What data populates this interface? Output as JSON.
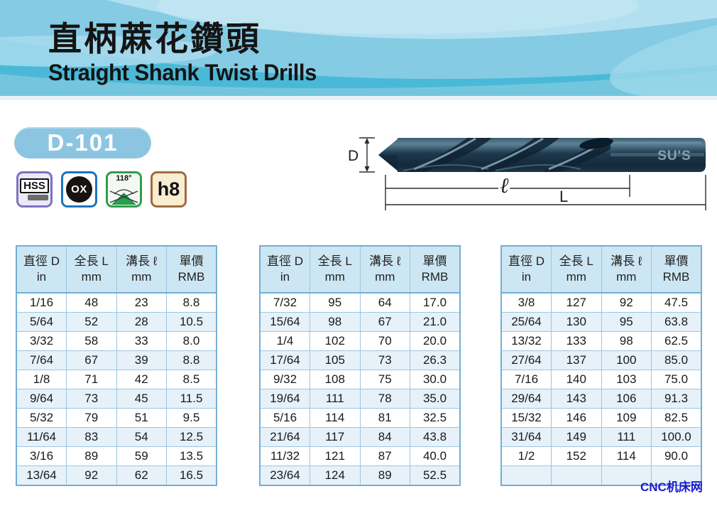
{
  "page": {
    "title_zh": "直柄蔴花鑽頭",
    "title_en": "Straight Shank Twist Drills",
    "model": "D-101",
    "watermark": "CNC机床网"
  },
  "spec_icons": {
    "hss": "HSS",
    "ox": "OX",
    "angle": "118°",
    "tolerance": "h8"
  },
  "diagram": {
    "brand": "SU'S",
    "label_diameter": "D",
    "label_flute_length": "ℓ",
    "label_overall_length": "L"
  },
  "table_header": {
    "c1a": "直徑 D",
    "c1b": "in",
    "c2a": "全長 L",
    "c2b": "mm",
    "c3a": "溝長 ℓ",
    "c3b": "mm",
    "c4a": "單價",
    "c4b": "RMB"
  },
  "tables": {
    "t1": {
      "rows": [
        [
          "1/16",
          "48",
          "23",
          "8.8"
        ],
        [
          "5/64",
          "52",
          "28",
          "10.5"
        ],
        [
          "3/32",
          "58",
          "33",
          "8.0"
        ],
        [
          "7/64",
          "67",
          "39",
          "8.8"
        ],
        [
          "1/8",
          "71",
          "42",
          "8.5"
        ],
        [
          "9/64",
          "73",
          "45",
          "11.5"
        ],
        [
          "5/32",
          "79",
          "51",
          "9.5"
        ],
        [
          "11/64",
          "83",
          "54",
          "12.5"
        ],
        [
          "3/16",
          "89",
          "59",
          "13.5"
        ],
        [
          "13/64",
          "92",
          "62",
          "16.5"
        ]
      ]
    },
    "t2": {
      "rows": [
        [
          "7/32",
          "95",
          "64",
          "17.0"
        ],
        [
          "15/64",
          "98",
          "67",
          "21.0"
        ],
        [
          "1/4",
          "102",
          "70",
          "20.0"
        ],
        [
          "17/64",
          "105",
          "73",
          "26.3"
        ],
        [
          "9/32",
          "108",
          "75",
          "30.0"
        ],
        [
          "19/64",
          "111",
          "78",
          "35.0"
        ],
        [
          "5/16",
          "114",
          "81",
          "32.5"
        ],
        [
          "21/64",
          "117",
          "84",
          "43.8"
        ],
        [
          "11/32",
          "121",
          "87",
          "40.0"
        ],
        [
          "23/64",
          "124",
          "89",
          "52.5"
        ]
      ]
    },
    "t3": {
      "rows": [
        [
          "3/8",
          "127",
          "92",
          "47.5"
        ],
        [
          "25/64",
          "130",
          "95",
          "63.8"
        ],
        [
          "13/32",
          "133",
          "98",
          "62.5"
        ],
        [
          "27/64",
          "137",
          "100",
          "85.0"
        ],
        [
          "7/16",
          "140",
          "103",
          "75.0"
        ],
        [
          "29/64",
          "143",
          "106",
          "91.3"
        ],
        [
          "15/32",
          "146",
          "109",
          "82.5"
        ],
        [
          "31/64",
          "149",
          "111",
          "100.0"
        ],
        [
          "1/2",
          "152",
          "114",
          "90.0"
        ],
        [
          "",
          "",
          "",
          ""
        ]
      ]
    }
  },
  "colors": {
    "banner_base": "#85cbe3",
    "badge": "#8cc5e1",
    "table_border": "#74aed3",
    "header_bg": "#cde6f3",
    "row_alt_bg": "#e6f1f9",
    "watermark": "#1b1bd1"
  }
}
